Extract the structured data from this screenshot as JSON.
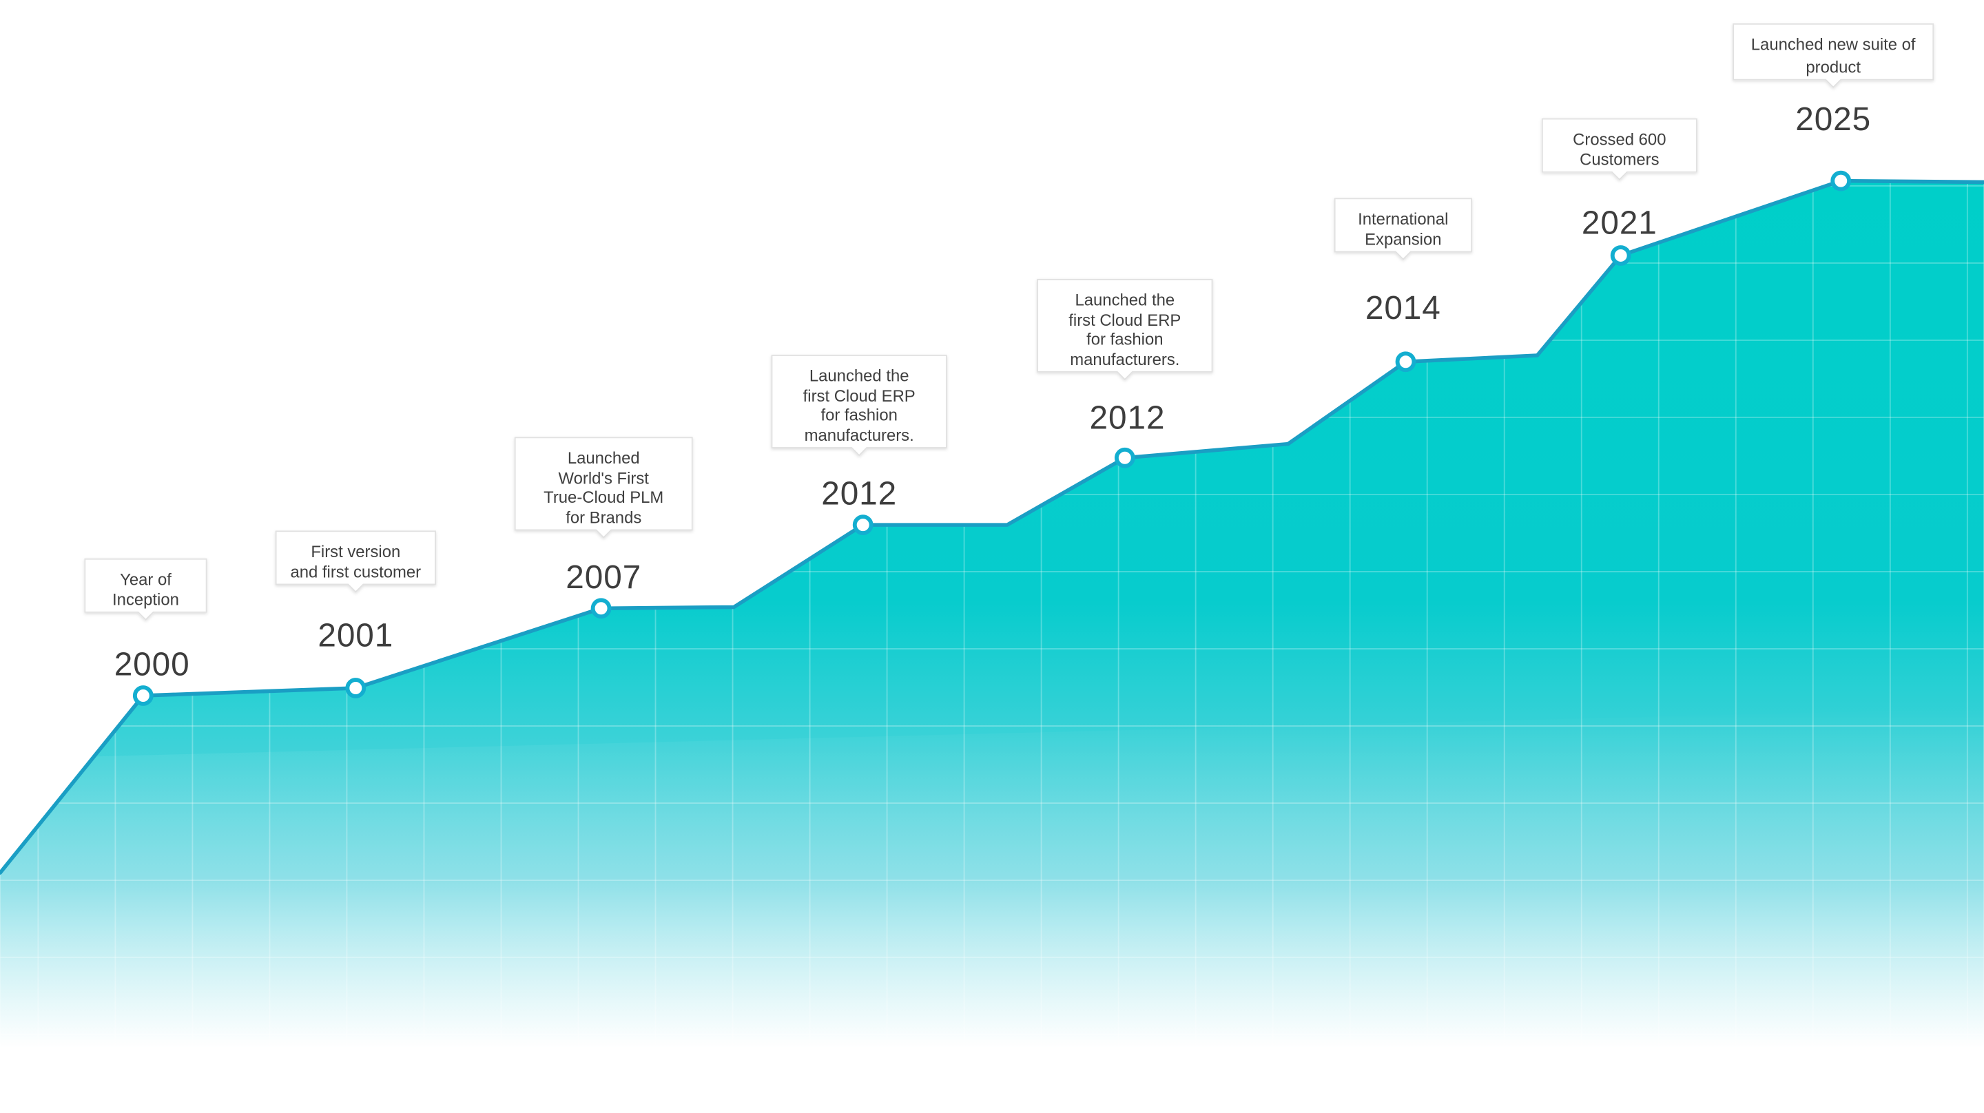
{
  "chart_data": {
    "type": "area",
    "title": "",
    "xlabel": "",
    "ylabel": "",
    "grid": true,
    "colors": {
      "fill_top": "#00cfc9",
      "fill_bottom": "#ffffff",
      "line": "#1a9ec4",
      "marker_ring": "#13aed0",
      "marker_center": "#ffffff",
      "grid": "#ffffff",
      "year_text": "#3d3d3d",
      "callout_text": "#3f3f3f",
      "callout_border": "#e1e1e1"
    },
    "milestones": [
      {
        "year": "2000",
        "note": [
          "Year of",
          "Inception"
        ]
      },
      {
        "year": "2001",
        "note": [
          "First version",
          "and first customer"
        ]
      },
      {
        "year": "2007",
        "note": [
          "Launched",
          "World's First",
          "True-Cloud PLM",
          "for Brands"
        ]
      },
      {
        "year": "2012",
        "note": [
          "Launched the",
          "first Cloud ERP",
          "for fashion",
          "manufacturers."
        ]
      },
      {
        "year": "2012",
        "note": [
          "Launched the",
          "first Cloud ERP",
          "for fashion",
          "manufacturers."
        ]
      },
      {
        "year": "2014",
        "note": [
          "International",
          "Expansion"
        ]
      },
      {
        "year": "2021",
        "note": [
          "Crossed 600",
          "Customers"
        ]
      },
      {
        "year": "2025",
        "note": [
          "Launched new suite of",
          "product"
        ]
      }
    ]
  }
}
